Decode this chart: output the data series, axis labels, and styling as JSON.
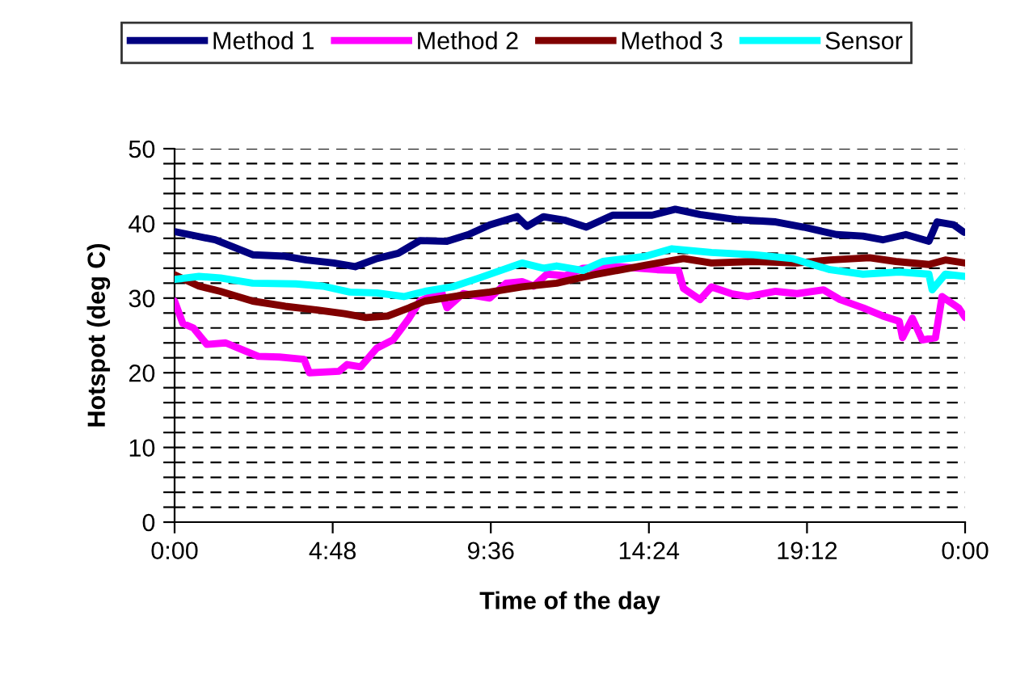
{
  "chart_data": {
    "type": "line",
    "xlabel": "Time of the day",
    "ylabel": "Hotspot (deg C)",
    "xlim": [
      0,
      24
    ],
    "xticks": [
      {
        "value": 0,
        "label": "0:00"
      },
      {
        "value": 4.8,
        "label": "4:48"
      },
      {
        "value": 9.6,
        "label": "9:36"
      },
      {
        "value": 14.4,
        "label": "14:24"
      },
      {
        "value": 19.2,
        "label": "19:12"
      },
      {
        "value": 24,
        "label": "0:00"
      }
    ],
    "ylim": [
      0,
      50
    ],
    "yticks": [
      0,
      {
        "value": 2,
        "label": null
      },
      {
        "value": 4,
        "label": null
      },
      {
        "value": 6,
        "label": null
      },
      {
        "value": 8,
        "label": null
      },
      10,
      {
        "value": 12,
        "label": null
      },
      {
        "value": 14,
        "label": null
      },
      {
        "value": 16,
        "label": null
      },
      {
        "value": 18,
        "label": null
      },
      20,
      {
        "value": 22,
        "label": null
      },
      {
        "value": 24,
        "label": null
      },
      {
        "value": 26,
        "label": null
      },
      {
        "value": 28,
        "label": null
      },
      30,
      {
        "value": 32,
        "label": null
      },
      {
        "value": 34,
        "label": null
      },
      {
        "value": 36,
        "label": null
      },
      {
        "value": 38,
        "label": null
      },
      40,
      {
        "value": 42,
        "label": null
      },
      {
        "value": 44,
        "label": null
      },
      {
        "value": 46,
        "label": null
      },
      {
        "value": 48,
        "label": null
      },
      50
    ],
    "grid": "y",
    "legend": "top",
    "marker": "none",
    "line_style": "solid",
    "series": [
      {
        "name": "Method 1",
        "color": "#000080",
        "x": [
          0,
          1.23,
          2.37,
          3.36,
          4.0,
          4.83,
          5.48,
          6.14,
          6.79,
          7.45,
          8.27,
          8.92,
          9.57,
          10.4,
          10.7,
          11.2,
          11.87,
          12.5,
          13.3,
          14.5,
          15.2,
          15.95,
          17.1,
          18.25,
          19.1,
          20.1,
          20.9,
          21.5,
          22.2,
          22.9,
          23.15,
          23.65,
          23.97
        ],
        "values": [
          38.9,
          37.8,
          35.8,
          35.6,
          35.1,
          34.7,
          34.2,
          35.3,
          36.0,
          37.7,
          37.6,
          38.5,
          39.8,
          40.9,
          39.6,
          40.9,
          40.4,
          39.5,
          41.1,
          41.1,
          41.9,
          41.2,
          40.5,
          40.2,
          39.5,
          38.5,
          38.3,
          37.8,
          38.5,
          37.6,
          40.2,
          39.8,
          38.8
        ]
      },
      {
        "name": "Method 2",
        "color": "#ff00ff",
        "x": [
          0,
          0.25,
          0.57,
          0.98,
          1.55,
          2.05,
          2.54,
          3.19,
          3.93,
          4.09,
          4.99,
          5.24,
          5.65,
          6.14,
          6.63,
          7.12,
          7.45,
          8.1,
          8.27,
          8.76,
          9.57,
          10.07,
          10.55,
          10.9,
          11.3,
          11.87,
          12.4,
          13.5,
          14.65,
          15.3,
          15.45,
          15.95,
          16.3,
          16.9,
          17.4,
          18.25,
          18.9,
          19.7,
          20.2,
          20.9,
          21.5,
          22.0,
          22.1,
          22.4,
          22.7,
          23.1,
          23.3,
          23.8,
          24.0
        ],
        "values": [
          29.6,
          26.6,
          26.0,
          23.8,
          24.0,
          23.1,
          22.2,
          22.1,
          21.8,
          20.0,
          20.2,
          21.1,
          20.8,
          23.3,
          24.4,
          27.3,
          29.6,
          30.9,
          28.7,
          30.6,
          30.0,
          32.0,
          32.2,
          31.6,
          33.2,
          33.0,
          34.0,
          34.2,
          33.8,
          33.7,
          31.3,
          29.8,
          31.5,
          30.6,
          30.2,
          30.9,
          30.6,
          31.1,
          29.8,
          28.7,
          27.6,
          26.9,
          24.7,
          27.3,
          24.4,
          24.7,
          30.2,
          28.7,
          27.4
        ]
      },
      {
        "name": "Method 3",
        "color": "#800000",
        "x": [
          0,
          0.74,
          1.39,
          2.37,
          3.36,
          4.34,
          5.16,
          5.81,
          6.47,
          7.12,
          7.6,
          8.6,
          9.57,
          10.55,
          11.6,
          12.7,
          14.3,
          15.45,
          16.3,
          17.6,
          18.9,
          19.9,
          21.1,
          21.9,
          22.9,
          23.4,
          24.0
        ],
        "values": [
          33.1,
          31.6,
          30.9,
          29.6,
          28.9,
          28.4,
          27.9,
          27.4,
          27.6,
          28.7,
          29.6,
          30.3,
          30.8,
          31.5,
          32.0,
          33.1,
          34.4,
          35.3,
          34.7,
          34.9,
          34.7,
          35.1,
          35.4,
          34.9,
          34.5,
          35.1,
          34.7
        ]
      },
      {
        "name": "Sensor",
        "color": "#00ffff",
        "x": [
          0,
          0.74,
          1.39,
          2.37,
          3.68,
          4.5,
          5.32,
          6.14,
          6.96,
          7.6,
          8.43,
          9.25,
          9.9,
          10.55,
          11.2,
          11.6,
          12.4,
          13.0,
          14.3,
          15.1,
          16.3,
          17.6,
          18.75,
          19.9,
          20.9,
          22.0,
          22.9,
          23.0,
          23.4,
          24.0
        ],
        "values": [
          32.5,
          32.9,
          32.7,
          32.0,
          31.9,
          31.6,
          30.8,
          30.7,
          30.2,
          30.9,
          31.5,
          32.7,
          33.7,
          34.7,
          34.0,
          34.3,
          33.7,
          34.9,
          35.6,
          36.6,
          36.1,
          35.8,
          35.3,
          33.8,
          33.2,
          33.5,
          33.2,
          31.1,
          33.2,
          32.9
        ]
      }
    ]
  }
}
